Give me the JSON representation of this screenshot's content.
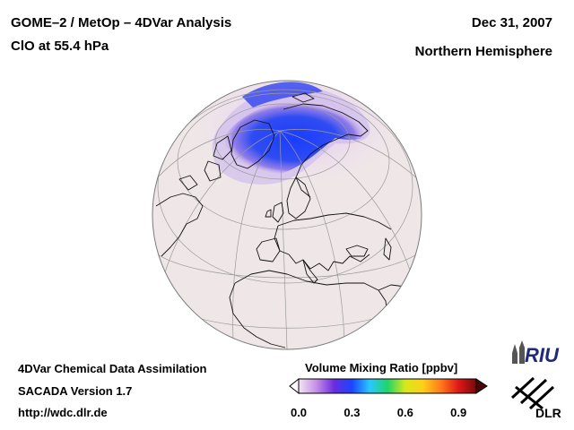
{
  "header": {
    "title_line1": "GOME–2 / MetOp – 4DVar Analysis",
    "title_line2": "ClO at 55.4 hPa",
    "date": "Dec 31, 2007",
    "region": "Northern Hemisphere"
  },
  "footer": {
    "line1": "4DVar Chemical Data Assimilation",
    "line2": "SACADA Version 1.7",
    "line3": "http://wdc.dlr.de"
  },
  "colorbar": {
    "title": "Volume Mixing Ratio [ppbv]",
    "min": 0.0,
    "max": 1.0,
    "ticks": [
      {
        "value": 0.0,
        "label": "0.0"
      },
      {
        "value": 0.3,
        "label": "0.3"
      },
      {
        "value": 0.6,
        "label": "0.6"
      },
      {
        "value": 0.9,
        "label": "0.9"
      }
    ],
    "stops": [
      "#f2e6f2",
      "#c58ee6",
      "#6a2ce0",
      "#1a45ff",
      "#29c8ff",
      "#1fd46a",
      "#d6e81a",
      "#ffcf1a",
      "#ff7a1a",
      "#e01818",
      "#7a0808"
    ]
  },
  "logos": {
    "riu": "RIU",
    "dlr": "DLR"
  },
  "map": {
    "projection": "orthographic",
    "hemisphere": "northern",
    "ocean_color": "#efe7e7"
  }
}
